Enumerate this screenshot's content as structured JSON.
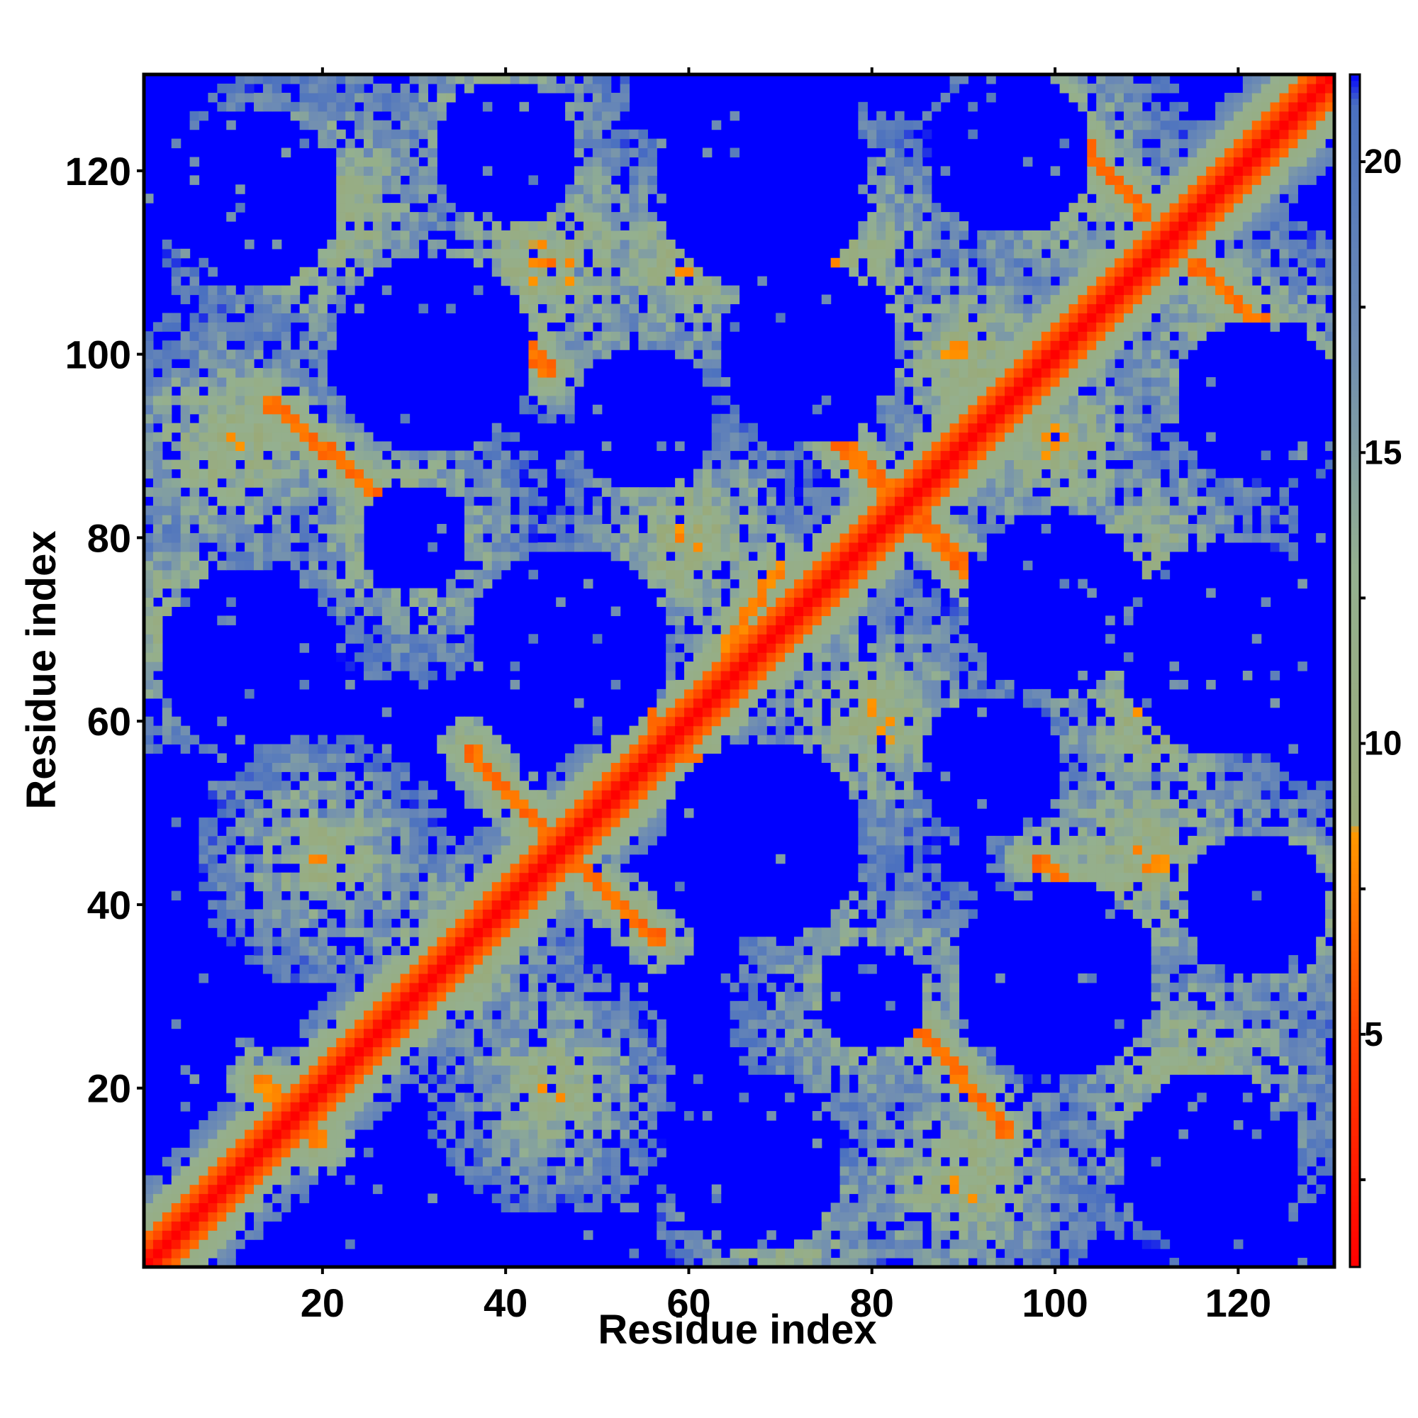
{
  "chart_data": {
    "type": "heatmap",
    "title": "",
    "xlabel": "Residue index",
    "ylabel": "Residue index",
    "xlim": [
      0.5,
      130.5
    ],
    "ylim": [
      0.5,
      130.5
    ],
    "n_residues": 130,
    "x_ticks": [
      20,
      40,
      60,
      80,
      100,
      120
    ],
    "y_ticks": [
      20,
      40,
      60,
      80,
      100,
      120
    ],
    "colorbar": {
      "range": [
        1,
        21.5
      ],
      "ticks": [
        5,
        10,
        15,
        20
      ],
      "colors": [
        {
          "value": 1,
          "color": "#ff0000"
        },
        {
          "value": 5,
          "color": "#ff4000"
        },
        {
          "value": 8.5,
          "color": "#ff9900"
        },
        {
          "value": 8.6,
          "color": "#9aaa78"
        },
        {
          "value": 13,
          "color": "#94b090"
        },
        {
          "value": 17,
          "color": "#6e8cb4"
        },
        {
          "value": 21,
          "color": "#4a70c0"
        },
        {
          "value": 21.5,
          "color": "#0000ff"
        }
      ]
    },
    "background_color": "#0000ff",
    "diagonal": {
      "from": [
        1,
        1
      ],
      "to": [
        130,
        130
      ],
      "value": 1
    },
    "contact_segments": [
      {
        "from": [
          36,
          57
        ],
        "to": [
          45,
          47
        ],
        "value": 6
      },
      {
        "from": [
          47,
          45
        ],
        "to": [
          57,
          36
        ],
        "value": 6
      },
      {
        "from": [
          51,
          66
        ],
        "to": [
          57,
          59
        ],
        "value": 6
      },
      {
        "from": [
          59,
          57
        ],
        "to": [
          66,
          51
        ],
        "value": 6
      },
      {
        "from": [
          59,
          57
        ],
        "to": [
          66,
          51
        ],
        "value": 6
      },
      {
        "from": [
          62,
          56
        ],
        "to": [
          66,
          52
        ],
        "value": 6
      },
      {
        "from": [
          64,
          68
        ],
        "to": [
          70,
          77
        ],
        "value": 7
      },
      {
        "from": [
          75,
          92
        ],
        "to": [
          83,
          84
        ],
        "value": 6
      },
      {
        "from": [
          84,
          83
        ],
        "to": [
          92,
          75
        ],
        "value": 6
      },
      {
        "from": [
          98,
          45
        ],
        "to": [
          108,
          36
        ],
        "value": 6
      },
      {
        "from": [
          84,
          28
        ],
        "to": [
          95,
          15
        ],
        "value": 6
      },
      {
        "from": [
          35,
          108
        ],
        "to": [
          45,
          98
        ],
        "value": 6
      },
      {
        "from": [
          14,
          95
        ],
        "to": [
          27,
          84
        ],
        "value": 6
      },
      {
        "from": [
          97,
          130
        ],
        "to": [
          110,
          115
        ],
        "value": 6
      },
      {
        "from": [
          115,
          110
        ],
        "to": [
          130,
          97
        ],
        "value": 6
      },
      {
        "from": [
          13,
          21
        ],
        "to": [
          20,
          14
        ],
        "value": 7
      }
    ],
    "halo_clusters": [
      {
        "center": [
          20,
          45
        ],
        "radius": 14
      },
      {
        "center": [
          45,
          20
        ],
        "radius": 14
      },
      {
        "center": [
          30,
          80
        ],
        "radius": 16
      },
      {
        "center": [
          80,
          30
        ],
        "radius": 16
      },
      {
        "center": [
          45,
          110
        ],
        "radius": 18
      },
      {
        "center": [
          110,
          45
        ],
        "radius": 18
      },
      {
        "center": [
          60,
          80
        ],
        "radius": 16
      },
      {
        "center": [
          80,
          60
        ],
        "radius": 16
      },
      {
        "center": [
          100,
          120
        ],
        "radius": 16
      },
      {
        "center": [
          120,
          100
        ],
        "radius": 16
      },
      {
        "center": [
          20,
          115
        ],
        "radius": 18
      },
      {
        "center": [
          115,
          20
        ],
        "radius": 18
      },
      {
        "center": [
          75,
          110
        ],
        "radius": 18
      },
      {
        "center": [
          110,
          75
        ],
        "radius": 18
      },
      {
        "center": [
          90,
          100
        ],
        "radius": 14
      },
      {
        "center": [
          100,
          90
        ],
        "radius": 14
      },
      {
        "center": [
          35,
          35
        ],
        "radius": 14
      },
      {
        "center": [
          90,
          10
        ],
        "radius": 16
      },
      {
        "center": [
          10,
          90
        ],
        "radius": 16
      },
      {
        "center": [
          125,
          40
        ],
        "radius": 14
      },
      {
        "center": [
          40,
          125
        ],
        "radius": 14
      },
      {
        "center": [
          60,
          110
        ],
        "radius": 14
      },
      {
        "center": [
          110,
          60
        ],
        "radius": 14
      },
      {
        "center": [
          70,
          5
        ],
        "radius": 14
      },
      {
        "center": [
          5,
          70
        ],
        "radius": 14
      }
    ],
    "voids": [
      {
        "center": [
          12,
          117
        ],
        "radius": 10
      },
      {
        "center": [
          117,
          12
        ],
        "radius": 10
      },
      {
        "center": [
          68,
          119
        ],
        "radius": 12
      },
      {
        "center": [
          119,
          68
        ],
        "radius": 12
      },
      {
        "center": [
          32,
          100
        ],
        "radius": 11
      },
      {
        "center": [
          100,
          32
        ],
        "radius": 11
      },
      {
        "center": [
          122,
          95
        ],
        "radius": 9
      },
      {
        "center": [
          95,
          122
        ],
        "radius": 9
      },
      {
        "center": [
          12,
          67
        ],
        "radius": 10
      },
      {
        "center": [
          67,
          12
        ],
        "radius": 10
      },
      {
        "center": [
          47,
          68
        ],
        "radius": 11
      },
      {
        "center": [
          68,
          47
        ],
        "radius": 11
      },
      {
        "center": [
          100,
          73
        ],
        "radius": 10
      },
      {
        "center": [
          73,
          100
        ],
        "radius": 10
      },
      {
        "center": [
          55,
          93
        ],
        "radius": 8
      },
      {
        "center": [
          93,
          55
        ],
        "radius": 8
      },
      {
        "center": [
          80,
          30
        ],
        "radius": 6
      },
      {
        "center": [
          30,
          80
        ],
        "radius": 6
      },
      {
        "center": [
          122,
          40
        ],
        "radius": 8
      },
      {
        "center": [
          40,
          122
        ],
        "radius": 8
      }
    ]
  }
}
